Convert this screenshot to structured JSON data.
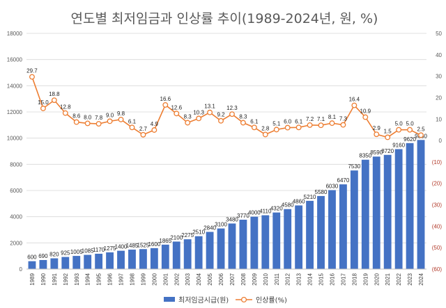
{
  "chart_data": {
    "type": "bar",
    "title": "연도별 최저임금과 인상률 추이(1989-2024년, 원, %)",
    "categories": [
      "1989",
      "1990",
      "1991",
      "1992",
      "1993",
      "1994",
      "1995",
      "1996",
      "1997",
      "1998",
      "1999",
      "2000",
      "2001",
      "2002",
      "2003",
      "2004",
      "2005",
      "2006",
      "2007",
      "2008",
      "2009",
      "2010",
      "2011",
      "2012",
      "2013",
      "2014",
      "2015",
      "2016",
      "2017",
      "2018",
      "2019",
      "2020",
      "2021",
      "2022",
      "2023",
      "2024"
    ],
    "series": [
      {
        "name": "최저임금시급(원)",
        "type": "bar",
        "axis": "left",
        "color": "#4472c4",
        "values": [
          600,
          690,
          820,
          925,
          1005,
          1085,
          1170,
          1275,
          1400,
          1485,
          1525,
          1600,
          1865,
          2100,
          2275,
          2510,
          2840,
          3100,
          3480,
          3770,
          4000,
          4110,
          4320,
          4580,
          4860,
          5210,
          5580,
          6030,
          6470,
          7530,
          8350,
          8590,
          8720,
          9160,
          9620,
          9860
        ],
        "labels": [
          "600",
          "690",
          "820",
          "925",
          "1005",
          "1085",
          "1170",
          "1275",
          "1400",
          "1485",
          "1525",
          "1600",
          "1865",
          "2100",
          "2275",
          "2510",
          "2840",
          "3100",
          "3480",
          "3770",
          "4000",
          "4110",
          "4320",
          "4580",
          "4860",
          "5210",
          "5580",
          "6030",
          "6470",
          "7530",
          "8350",
          "8590",
          "8720",
          "9160",
          "9620",
          "9860"
        ]
      },
      {
        "name": "인상률(%)",
        "type": "line",
        "axis": "right",
        "color": "#ed7d31",
        "values": [
          29.7,
          15.0,
          18.8,
          12.8,
          8.6,
          8.0,
          7.8,
          9.0,
          9.8,
          6.1,
          2.7,
          4.9,
          16.6,
          12.6,
          8.3,
          10.3,
          13.1,
          9.2,
          12.3,
          8.3,
          6.1,
          2.8,
          5.1,
          6.0,
          6.1,
          7.2,
          7.1,
          8.1,
          7.3,
          16.4,
          10.9,
          2.9,
          1.5,
          5.0,
          5.0,
          2.5
        ],
        "labels": [
          "29.7",
          "15.0",
          "18.8",
          "12.8",
          "8.6",
          "8.0",
          "7.8",
          "9.0",
          "9.8",
          "6.1",
          "2.7",
          "4.9",
          "16.6",
          "12.6",
          "8.3",
          "10.3",
          "13.1",
          "9.2",
          "12.3",
          "8.3",
          "6.1",
          "2.8",
          "5.1",
          "6.0",
          "6.1",
          "7.2",
          "7.1",
          "8.1",
          "7.3",
          "16.4",
          "10.9",
          "2.9",
          "1.5",
          "5.0",
          "5.0",
          "2.5"
        ]
      }
    ],
    "y_left": {
      "ylim": [
        0,
        18000
      ],
      "ticks": [
        "0",
        "2000",
        "4000",
        "6000",
        "8000",
        "10000",
        "12000",
        "14000",
        "16000",
        "18000"
      ]
    },
    "y_right": {
      "ylim": [
        -60,
        50
      ],
      "ticks": [
        "50",
        "40",
        "30",
        "20",
        "10",
        "0",
        "(10)",
        "(20)",
        "(30)",
        "(40)",
        "(50)",
        "(60)"
      ]
    },
    "grid": true,
    "legend_position": "bottom"
  },
  "legend": {
    "bar_label": "최저임금시급(원)",
    "line_label": "인상률(%)"
  }
}
